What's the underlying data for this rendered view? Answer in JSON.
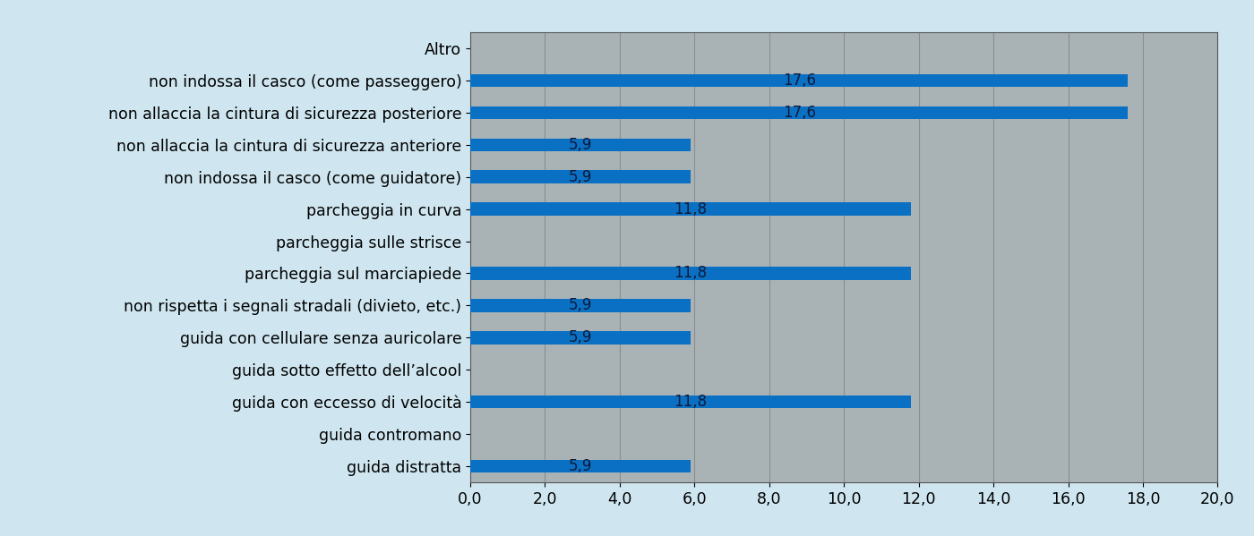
{
  "chart_data": {
    "type": "bar",
    "orientation": "horizontal",
    "categories": [
      "guida distratta",
      "guida contromano",
      "guida con eccesso di velocità",
      "guida sotto effetto dell’alcool",
      "guida con cellulare senza auricolare",
      "non rispetta i segnali stradali (divieto, etc.)",
      "parcheggia sul marciapiede",
      "parcheggia sulle strisce",
      "parcheggia in curva",
      "non indossa il casco (come guidatore)",
      "non allaccia la cintura di sicurezza anteriore",
      "non allaccia la cintura di sicurezza posteriore",
      "non indossa il casco (come passeggero)",
      "Altro"
    ],
    "values": [
      5.9,
      null,
      11.8,
      null,
      5.9,
      5.9,
      11.8,
      null,
      11.8,
      5.9,
      5.9,
      17.6,
      17.6,
      null
    ],
    "value_labels": [
      "5,9",
      null,
      "11,8",
      null,
      "5,9",
      "5,9",
      "11,8",
      null,
      "11,8",
      "5,9",
      "5,9",
      "17,6",
      "17,6",
      null
    ],
    "color": "#0a70c4",
    "xlim": [
      0,
      20
    ],
    "xticks": [
      {
        "value": 0,
        "label": "0,0"
      },
      {
        "value": 2,
        "label": "2,0"
      },
      {
        "value": 4,
        "label": "4,0"
      },
      {
        "value": 6,
        "label": "6,0"
      },
      {
        "value": 8,
        "label": "8,0"
      },
      {
        "value": 10,
        "label": "10,0"
      },
      {
        "value": 12,
        "label": "12,0"
      },
      {
        "value": 14,
        "label": "14,0"
      },
      {
        "value": 16,
        "label": "16,0"
      },
      {
        "value": 18,
        "label": "18,0"
      },
      {
        "value": 20,
        "label": "20,0"
      }
    ],
    "grid": true,
    "data_labels": true
  }
}
